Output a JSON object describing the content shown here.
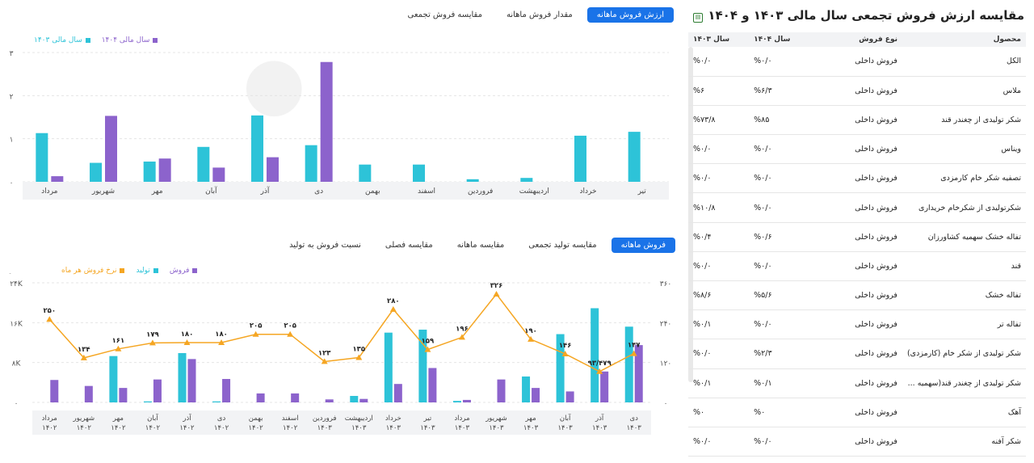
{
  "top_tabs": [
    {
      "label": "ارزش فروش ماهانه",
      "active": true
    },
    {
      "label": "مقدار فروش ماهانه",
      "active": false
    },
    {
      "label": "مقایسه فروش تجمعی",
      "active": false
    }
  ],
  "bottom_tabs": [
    {
      "label": "فروش ماهانه",
      "active": true
    },
    {
      "label": "مقایسه تولید تجمعی",
      "active": false
    },
    {
      "label": "مقایسه ماهانه",
      "active": false
    },
    {
      "label": "مقایسه فصلی",
      "active": false
    },
    {
      "label": "نسبت فروش به تولید",
      "active": false
    }
  ],
  "panel": {
    "title": "مقایسه ارزش فروش تجمعی سال مالی ۱۴۰۳ و ۱۴۰۴",
    "headers": [
      "محصول",
      "نوع فروش",
      "سال ۱۴۰۴",
      "سال ۱۴۰۳"
    ],
    "rows": [
      [
        "الکل",
        "فروش داخلی",
        "%۰/۰",
        "%۰/۰"
      ],
      [
        "ملاس",
        "فروش داخلی",
        "%۶/۳",
        "%۶"
      ],
      [
        "شکر تولیدی از چغندر قند",
        "فروش داخلی",
        "%۸۵",
        "%۷۳/۸"
      ],
      [
        "ویناس",
        "فروش داخلی",
        "%۰/۰",
        "%۰/۰"
      ],
      [
        "تصفیه شکر خام کارمزدی",
        "فروش داخلی",
        "%۰/۰",
        "%۰/۰"
      ],
      [
        "شکرتولیدی از شکرخام خریداری",
        "فروش داخلی",
        "%۰/۰",
        "%۱۰/۸"
      ],
      [
        "تفاله خشک سهمیه کشاورزان",
        "فروش داخلی",
        "%۰/۶",
        "%۰/۴"
      ],
      [
        "قند",
        "فروش داخلی",
        "%۰/۰",
        "%۰/۰"
      ],
      [
        "تفاله خشک",
        "فروش داخلی",
        "%۵/۶",
        "%۸/۶"
      ],
      [
        "تفاله تر",
        "فروش داخلی",
        "%۰/۰",
        "%۰/۱"
      ],
      [
        "شکر تولیدی از شکر خام (کارمزدی)",
        "فروش داخلی",
        "%۲/۳",
        "%۰/۰"
      ],
      [
        "شکر تولیدی از چغندر قند(سهمیه ...",
        "فروش داخلی",
        "%۰/۱",
        "%۰/۱"
      ],
      [
        "آهک",
        "فروش داخلی",
        "%۰",
        "%۰"
      ],
      [
        "شکر آفنه",
        "فروش داخلی",
        "%۰/۰",
        "%۰/۰"
      ]
    ]
  },
  "chart_data": [
    {
      "type": "bar",
      "categories": [
        "تیر",
        "خرداد",
        "اردیبهشت",
        "فروردین",
        "اسفند",
        "بهمن",
        "دی",
        "آذر",
        "آبان",
        "مهر",
        "شهریور",
        "مرداد"
      ],
      "series": [
        {
          "name": "سال مالی ۱۴۰۴",
          "color": "#8c63cc",
          "values": [
            null,
            null,
            null,
            null,
            null,
            null,
            2.78,
            0.57,
            0.33,
            0.54,
            1.53,
            0.13
          ]
        },
        {
          "name": "سال مالی ۱۴۰۳",
          "color": "#2dc3d8",
          "values": [
            1.16,
            1.07,
            0.09,
            0.06,
            0.4,
            0.4,
            0.85,
            1.54,
            0.81,
            0.47,
            0.44,
            1.13
          ]
        }
      ],
      "y_ticks": [
        "۰",
        "۱",
        "۲",
        "۳"
      ],
      "ylim": [
        0,
        3
      ],
      "legend": "top-left"
    },
    {
      "type": "bar+line",
      "categories": [
        [
          "مرداد",
          "۱۴۰۲"
        ],
        [
          "شهریور",
          "۱۴۰۲"
        ],
        [
          "مهر",
          "۱۴۰۲"
        ],
        [
          "آبان",
          "۱۴۰۲"
        ],
        [
          "آذر",
          "۱۴۰۲"
        ],
        [
          "دی",
          "۱۴۰۲"
        ],
        [
          "بهمن",
          "۱۴۰۲"
        ],
        [
          "اسفند",
          "۱۴۰۲"
        ],
        [
          "فروردین",
          "۱۴۰۳"
        ],
        [
          "اردیبهشت",
          "۱۴۰۳"
        ],
        [
          "خرداد",
          "۱۴۰۳"
        ],
        [
          "تیر",
          "۱۴۰۳"
        ],
        [
          "مرداد",
          "۱۴۰۳"
        ],
        [
          "شهریور",
          "۱۴۰۳"
        ],
        [
          "مهر",
          "۱۴۰۳"
        ],
        [
          "آبان",
          "۱۴۰۳"
        ],
        [
          "آذر",
          "۱۴۰۳"
        ],
        [
          "دی",
          "۱۴۰۳"
        ]
      ],
      "series": [
        {
          "name": "فروش",
          "color": "#8c63cc",
          "type": "bar",
          "values": [
            4.5,
            3.3,
            2.9,
            4.6,
            8.7,
            4.7,
            1.8,
            1.8,
            0.6,
            0.7,
            3.7,
            6.9,
            0.5,
            4.6,
            2.9,
            2.2,
            6.2,
            11.5
          ]
        },
        {
          "name": "تولید",
          "color": "#2dc3d8",
          "type": "bar",
          "values": [
            0,
            0,
            9.3,
            0.2,
            9.9,
            0.2,
            0,
            0,
            0,
            1.3,
            14.0,
            14.6,
            0.3,
            0,
            5.2,
            13.7,
            18.9,
            15.2
          ]
        },
        {
          "name": "نرخ فروش هر ماه",
          "color": "#f5a623",
          "type": "line",
          "values": [
            250,
            134,
            161,
            179,
            180,
            180,
            205,
            205,
            123,
            135,
            280,
            159,
            196,
            326,
            190,
            146,
            93,
            147
          ],
          "labels": [
            "۲۵۰",
            "۱۳۴",
            "۱۶۱",
            "۱۷۹",
            "۱۸۰",
            "۱۸۰",
            "۲۰۵",
            "۲۰۵",
            "۱۲۳",
            "۱۳۵",
            "۲۸۰",
            "۱۵۹",
            "۱۹۶",
            "۳۲۶",
            "۱۹۰",
            "۱۴۶",
            "۹۳/۴۷۹",
            "۱۴۷"
          ]
        }
      ],
      "y_left_ticks": [
        "۰",
        "۸K",
        "۱۶K",
        "۲۴K"
      ],
      "y_left_unit": "تن",
      "ylim_left": [
        0,
        24
      ],
      "y_right_ticks": [
        "۰",
        "۱۲۰",
        "۲۴۰",
        "۳۶۰"
      ],
      "ylim_right": [
        0,
        360
      ],
      "legend": "top-left"
    }
  ]
}
